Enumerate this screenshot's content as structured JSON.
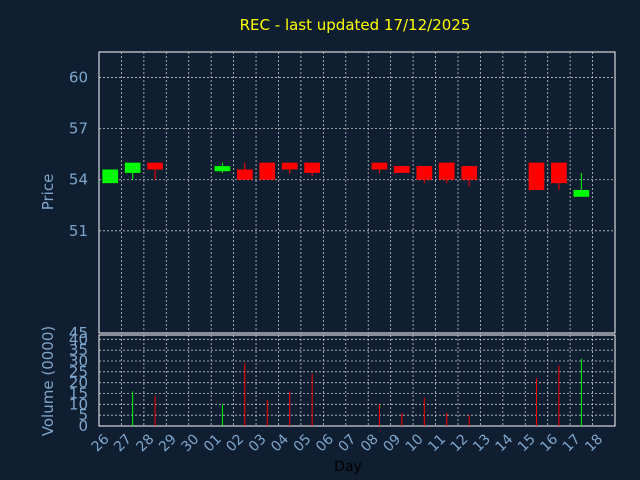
{
  "chart_data": {
    "type": "candlestick",
    "title": "REC - last updated 17/12/2025",
    "colors": {
      "background": "#0f1e30",
      "up": "#00ff00",
      "down": "#ff0000",
      "title": "#ffff00",
      "axis_text": "#7fa6cc",
      "grid": "#c8c8c8"
    },
    "x_tick_labels": [
      "26",
      "27",
      "28",
      "29",
      "30",
      "01",
      "02",
      "03",
      "04",
      "05",
      "06",
      "07",
      "08",
      "09",
      "10",
      "11",
      "12",
      "13",
      "14",
      "15",
      "16",
      "17",
      "18"
    ],
    "xlabel": "Day",
    "price_panel": {
      "ylabel": "Price",
      "ylim": [
        45,
        61.5
      ],
      "yticks": [
        45,
        51,
        54,
        57,
        60
      ],
      "candles": [
        {
          "x": "26",
          "open": 53.8,
          "high": 54.6,
          "low": 53.8,
          "close": 54.6
        },
        {
          "x": "27",
          "open": 54.4,
          "high": 55.0,
          "low": 54.0,
          "close": 55.0
        },
        {
          "x": "28",
          "open": 55.0,
          "high": 55.0,
          "low": 54.0,
          "close": 54.6
        },
        {
          "x": "01",
          "open": 54.5,
          "high": 55.0,
          "low": 54.4,
          "close": 54.8
        },
        {
          "x": "02",
          "open": 54.6,
          "high": 55.0,
          "low": 54.0,
          "close": 54.0
        },
        {
          "x": "03",
          "open": 55.0,
          "high": 55.0,
          "low": 54.0,
          "close": 54.0
        },
        {
          "x": "04",
          "open": 55.0,
          "high": 55.0,
          "low": 54.4,
          "close": 54.6
        },
        {
          "x": "05",
          "open": 55.0,
          "high": 55.0,
          "low": 54.2,
          "close": 54.4
        },
        {
          "x": "08",
          "open": 55.0,
          "high": 55.0,
          "low": 54.4,
          "close": 54.6
        },
        {
          "x": "09",
          "open": 54.8,
          "high": 54.8,
          "low": 54.4,
          "close": 54.4
        },
        {
          "x": "10",
          "open": 54.8,
          "high": 54.8,
          "low": 53.8,
          "close": 54.0
        },
        {
          "x": "11",
          "open": 55.0,
          "high": 55.0,
          "low": 53.8,
          "close": 54.0
        },
        {
          "x": "12",
          "open": 54.8,
          "high": 54.8,
          "low": 53.6,
          "close": 54.0
        },
        {
          "x": "15",
          "open": 55.0,
          "high": 55.0,
          "low": 53.4,
          "close": 53.4
        },
        {
          "x": "16",
          "open": 55.0,
          "high": 55.0,
          "low": 53.4,
          "close": 53.8
        },
        {
          "x": "17",
          "open": 53.0,
          "high": 54.4,
          "low": 53.0,
          "close": 53.4
        }
      ]
    },
    "volume_panel": {
      "ylabel": "Volume (0000)",
      "ylim": [
        0,
        42
      ],
      "yticks": [
        0,
        5,
        10,
        15,
        20,
        25,
        30,
        35,
        40
      ],
      "bars": [
        {
          "x": "27",
          "value": 16,
          "direction": "up"
        },
        {
          "x": "28",
          "value": 14,
          "direction": "down"
        },
        {
          "x": "01",
          "value": 10,
          "direction": "up"
        },
        {
          "x": "02",
          "value": 29,
          "direction": "down"
        },
        {
          "x": "03",
          "value": 12,
          "direction": "down"
        },
        {
          "x": "04",
          "value": 16,
          "direction": "down"
        },
        {
          "x": "05",
          "value": 24,
          "direction": "down"
        },
        {
          "x": "08",
          "value": 10,
          "direction": "down"
        },
        {
          "x": "09",
          "value": 6,
          "direction": "down"
        },
        {
          "x": "10",
          "value": 13,
          "direction": "down"
        },
        {
          "x": "11",
          "value": 6,
          "direction": "down"
        },
        {
          "x": "12",
          "value": 5,
          "direction": "down"
        },
        {
          "x": "15",
          "value": 22,
          "direction": "down"
        },
        {
          "x": "16",
          "value": 28,
          "direction": "down"
        },
        {
          "x": "17",
          "value": 31,
          "direction": "up"
        }
      ]
    }
  }
}
